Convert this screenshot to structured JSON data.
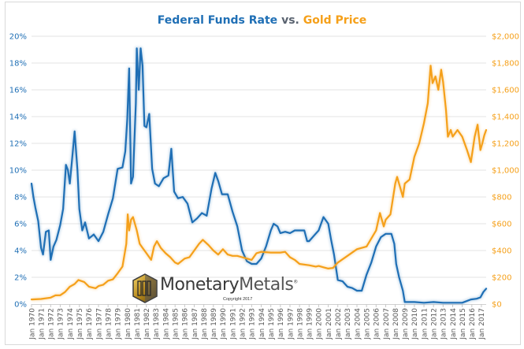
{
  "chart_data": {
    "type": "line",
    "title": "Federal Funds Rate vs. Gold Price",
    "title_parts": {
      "series1": "Federal Funds Rate",
      "joiner": "vs.",
      "series2": "Gold Price"
    },
    "xlabel": "",
    "ylabel_left": "",
    "ylabel_right": "",
    "grid": true,
    "legend": "none (title acts as legend)",
    "y_left": {
      "min": 0,
      "max": 20,
      "ticks": [
        "0%",
        "2%",
        "4%",
        "6%",
        "8%",
        "10%",
        "12%",
        "14%",
        "16%",
        "18%",
        "20%"
      ],
      "color": "#1f6fb5"
    },
    "y_right": {
      "min": 0,
      "max": 2000,
      "ticks": [
        "$0",
        "$200",
        "$400",
        "$600",
        "$800",
        "$1,000",
        "$1,200",
        "$1,400",
        "$1,600",
        "$1,800",
        "$2,000"
      ],
      "color": "#f5a01a"
    },
    "x_ticks": [
      "Jan 1970",
      "Jan 1971",
      "Jan 1972",
      "Jan 1973",
      "Jan 1974",
      "Jan 1975",
      "Jan 1976",
      "Jan 1977",
      "Jan 1978",
      "Jan 1979",
      "Jan 1980",
      "Jan 1981",
      "Jan 1982",
      "Jan 1983",
      "Jan 1984",
      "Jan 1985",
      "Jan 1986",
      "Jan 1987",
      "Jan 1988",
      "Jan 1989",
      "Jan 1990",
      "Jan 1991",
      "Jan 1992",
      "Jan 1993",
      "Jan 1994",
      "Jan 1995",
      "Jan 1996",
      "Jan 1997",
      "Jan 1998",
      "Jan 1999",
      "Jan 2000",
      "Jan 2001",
      "Jan 2002",
      "Jan 2003",
      "Jan 2004",
      "Jan 2005",
      "Jan 2006",
      "Jan 2007",
      "Jan 2008",
      "Jan 2009",
      "Jan 2010",
      "Jan 2011",
      "Jan 2012",
      "Jan 2013",
      "Jan 2014",
      "Jan 2015",
      "Jan 2016",
      "Jan 2017"
    ],
    "x_range": [
      1970.0,
      2017.5
    ],
    "series": [
      {
        "name": "Federal Funds Rate",
        "axis": "left",
        "unit": "%",
        "color": "#1f6fb5",
        "x": [
          1970.0,
          1970.2,
          1970.4,
          1970.7,
          1971.0,
          1971.2,
          1971.5,
          1971.8,
          1972.0,
          1972.3,
          1972.6,
          1973.0,
          1973.3,
          1973.6,
          1973.8,
          1974.0,
          1974.2,
          1974.5,
          1974.8,
          1975.0,
          1975.3,
          1975.6,
          1976.0,
          1976.5,
          1977.0,
          1977.5,
          1978.0,
          1978.5,
          1979.0,
          1979.5,
          1979.8,
          1980.0,
          1980.2,
          1980.4,
          1980.6,
          1980.9,
          1981.0,
          1981.2,
          1981.4,
          1981.6,
          1981.8,
          1982.0,
          1982.3,
          1982.6,
          1982.9,
          1983.3,
          1983.8,
          1984.3,
          1984.6,
          1984.9,
          1985.3,
          1985.8,
          1986.3,
          1986.8,
          1987.3,
          1987.8,
          1988.3,
          1988.8,
          1989.2,
          1989.5,
          1989.9,
          1990.5,
          1991.0,
          1991.5,
          1992.0,
          1992.5,
          1993.0,
          1993.5,
          1994.0,
          1994.5,
          1995.0,
          1995.3,
          1995.7,
          1996.0,
          1996.5,
          1997.0,
          1997.5,
          1998.0,
          1998.5,
          1998.8,
          1999.0,
          1999.5,
          2000.0,
          2000.5,
          2001.0,
          2001.3,
          2001.6,
          2002.0,
          2002.5,
          2003.0,
          2003.5,
          2004.0,
          2004.5,
          2005.0,
          2005.5,
          2006.0,
          2006.5,
          2007.0,
          2007.6,
          2007.9,
          2008.1,
          2008.4,
          2008.8,
          2009.0,
          2010.0,
          2011.0,
          2012.0,
          2013.0,
          2014.0,
          2015.0,
          2015.9,
          2016.5,
          2016.9,
          2017.2,
          2017.5
        ],
        "values": [
          9.0,
          8.0,
          7.2,
          6.2,
          4.2,
          3.7,
          5.4,
          5.5,
          3.3,
          4.3,
          4.8,
          5.9,
          7.1,
          10.4,
          10.0,
          9.0,
          10.5,
          12.9,
          10.0,
          7.1,
          5.5,
          6.1,
          4.9,
          5.2,
          4.7,
          5.4,
          6.7,
          7.9,
          10.1,
          10.2,
          11.4,
          13.8,
          17.6,
          9.0,
          9.5,
          15.0,
          19.1,
          16.0,
          19.1,
          17.8,
          13.3,
          13.2,
          14.2,
          10.1,
          9.0,
          8.8,
          9.4,
          9.6,
          11.6,
          8.4,
          7.9,
          8.0,
          7.5,
          6.1,
          6.4,
          6.8,
          6.6,
          8.6,
          9.8,
          9.2,
          8.2,
          8.2,
          6.9,
          5.8,
          4.0,
          3.2,
          3.0,
          3.0,
          3.4,
          4.3,
          5.5,
          6.0,
          5.8,
          5.3,
          5.4,
          5.3,
          5.5,
          5.5,
          5.5,
          4.7,
          4.7,
          5.1,
          5.5,
          6.5,
          6.0,
          4.8,
          3.7,
          1.8,
          1.7,
          1.3,
          1.2,
          1.0,
          1.0,
          2.2,
          3.1,
          4.3,
          5.0,
          5.25,
          5.25,
          4.5,
          3.0,
          2.0,
          1.0,
          0.15,
          0.15,
          0.1,
          0.15,
          0.1,
          0.1,
          0.1,
          0.35,
          0.4,
          0.5,
          0.9,
          1.15
        ]
      },
      {
        "name": "Gold Price",
        "axis": "right",
        "unit": "USD/oz",
        "color": "#f5a01a",
        "x": [
          1970.0,
          1971.0,
          1972.0,
          1972.5,
          1973.0,
          1973.5,
          1974.0,
          1974.5,
          1974.9,
          1975.5,
          1976.0,
          1976.7,
          1977.0,
          1977.5,
          1978.0,
          1978.5,
          1979.0,
          1979.5,
          1979.9,
          1980.05,
          1980.2,
          1980.4,
          1980.6,
          1980.8,
          1981.0,
          1981.3,
          1981.6,
          1982.0,
          1982.5,
          1982.8,
          1983.1,
          1983.5,
          1984.0,
          1984.5,
          1985.0,
          1985.3,
          1986.0,
          1986.5,
          1987.0,
          1987.5,
          1987.9,
          1988.5,
          1989.0,
          1989.5,
          1990.0,
          1990.5,
          1991.0,
          1991.5,
          1992.0,
          1992.5,
          1993.0,
          1993.5,
          1994.0,
          1995.0,
          1996.0,
          1996.5,
          1997.0,
          1997.5,
          1998.0,
          1999.0,
          1999.7,
          2000.0,
          2000.5,
          2001.0,
          2001.5,
          2002.0,
          2003.0,
          2004.0,
          2005.0,
          2006.0,
          2006.4,
          2006.8,
          2007.0,
          2007.5,
          2008.0,
          2008.2,
          2008.8,
          2009.0,
          2009.5,
          2010.0,
          2010.5,
          2011.0,
          2011.4,
          2011.7,
          2011.9,
          2012.2,
          2012.5,
          2012.8,
          2013.0,
          2013.3,
          2013.5,
          2013.8,
          2014.0,
          2014.5,
          2015.0,
          2015.5,
          2015.9,
          2016.3,
          2016.6,
          2016.9,
          2017.1,
          2017.3,
          2017.5
        ],
        "values": [
          35,
          38,
          48,
          65,
          66,
          90,
          130,
          150,
          180,
          165,
          130,
          118,
          135,
          145,
          175,
          185,
          230,
          280,
          450,
          670,
          550,
          630,
          650,
          600,
          550,
          450,
          420,
          380,
          330,
          430,
          470,
          420,
          380,
          350,
          310,
          300,
          340,
          350,
          400,
          450,
          480,
          440,
          400,
          370,
          410,
          370,
          360,
          360,
          350,
          340,
          330,
          380,
          390,
          385,
          385,
          390,
          350,
          330,
          300,
          290,
          280,
          285,
          275,
          265,
          270,
          310,
          360,
          410,
          430,
          550,
          680,
          580,
          630,
          670,
          900,
          950,
          800,
          900,
          930,
          1100,
          1200,
          1350,
          1500,
          1780,
          1650,
          1700,
          1600,
          1750,
          1660,
          1450,
          1250,
          1300,
          1250,
          1300,
          1250,
          1150,
          1060,
          1250,
          1340,
          1150,
          1200,
          1260,
          1300
        ]
      }
    ],
    "annotations": [
      "MonetaryMetals® logo",
      "Copyright 2017"
    ]
  },
  "logo": {
    "brand_part1": "Monetary",
    "brand_part2": "Metals",
    "registered": "®",
    "copyright": "Copyright 2017"
  }
}
